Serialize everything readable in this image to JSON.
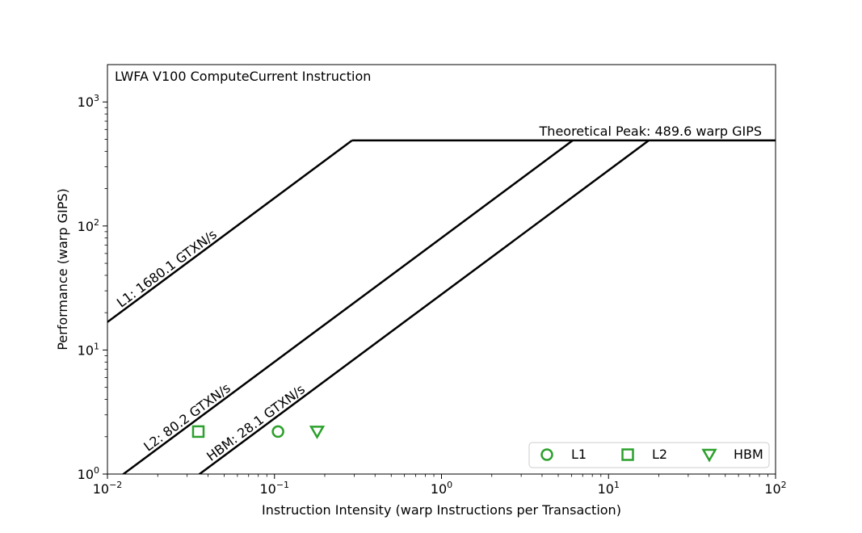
{
  "chart_data": {
    "type": "scatter",
    "title": "LWFA V100 ComputeCurrent Instruction",
    "xlabel": "Instruction Intensity (warp Instructions per Transaction)",
    "ylabel": "Performance (warp GIPS)",
    "xscale": "log",
    "yscale": "log",
    "xlim": [
      0.01,
      100
    ],
    "ylim": [
      1,
      2000
    ],
    "x_ticks": [
      {
        "value": 0.01,
        "base": "10",
        "exp": "−2"
      },
      {
        "value": 0.1,
        "base": "10",
        "exp": "−1"
      },
      {
        "value": 1,
        "base": "10",
        "exp": "0"
      },
      {
        "value": 10,
        "base": "10",
        "exp": "1"
      },
      {
        "value": 100,
        "base": "10",
        "exp": "2"
      }
    ],
    "y_ticks": [
      {
        "value": 1,
        "base": "10",
        "exp": "0"
      },
      {
        "value": 10,
        "base": "10",
        "exp": "1"
      },
      {
        "value": 100,
        "base": "10",
        "exp": "2"
      },
      {
        "value": 1000,
        "base": "10",
        "exp": "3"
      }
    ],
    "peak": {
      "value": 489.6,
      "label": "Theoretical Peak: 489.6 warp GIPS"
    },
    "rooflines": [
      {
        "name": "L1",
        "bandwidth": 1680.1,
        "label": "L1: 1680.1 GTXN/s"
      },
      {
        "name": "L2",
        "bandwidth": 80.2,
        "label": "L2: 80.2 GTXN/s"
      },
      {
        "name": "HBM",
        "bandwidth": 28.1,
        "label": "HBM: 28.1 GTXN/s"
      }
    ],
    "series": [
      {
        "name": "L1",
        "marker": "circle",
        "x": 0.105,
        "y": 2.2
      },
      {
        "name": "L2",
        "marker": "square",
        "x": 0.035,
        "y": 2.2
      },
      {
        "name": "HBM",
        "marker": "triangle-down",
        "x": 0.18,
        "y": 2.2
      }
    ],
    "marker_color": "#2ca02c",
    "line_color": "#000000",
    "grid": false,
    "legend_position": "lower-right"
  }
}
